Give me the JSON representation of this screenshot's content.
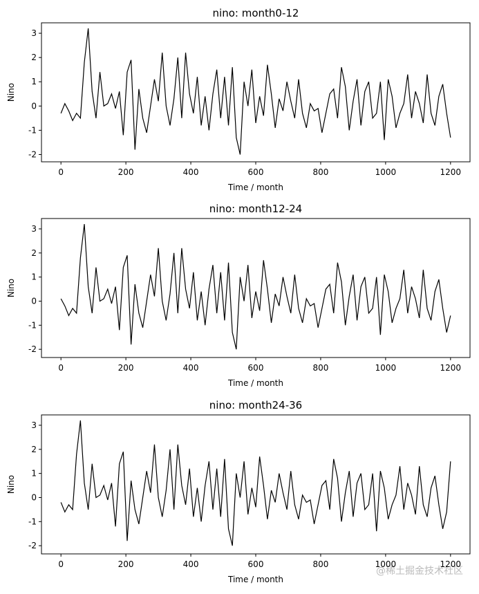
{
  "chart_data": [
    {
      "type": "line",
      "title": "nino: month0-12",
      "xlabel": "Time / month",
      "ylabel": "Nino",
      "xlim": [
        -60,
        1260
      ],
      "ylim": [
        -2.3,
        3.43
      ],
      "xticks": [
        0,
        200,
        400,
        600,
        800,
        1000,
        1200
      ],
      "yticks": [
        -2,
        -1,
        0,
        1,
        2,
        3
      ],
      "x": [
        0,
        12,
        24,
        36,
        48,
        60,
        72,
        84,
        96,
        108,
        120,
        132,
        144,
        156,
        168,
        180,
        192,
        204,
        216,
        228,
        240,
        252,
        264,
        276,
        288,
        300,
        312,
        324,
        336,
        348,
        360,
        372,
        384,
        396,
        408,
        420,
        432,
        444,
        456,
        468,
        480,
        492,
        504,
        516,
        528,
        540,
        552,
        564,
        576,
        588,
        600,
        612,
        624,
        636,
        648,
        660,
        672,
        684,
        696,
        708,
        720,
        732,
        744,
        756,
        768,
        780,
        792,
        804,
        816,
        828,
        840,
        852,
        864,
        876,
        888,
        900,
        912,
        924,
        936,
        948,
        960,
        972,
        984,
        996,
        1008,
        1020,
        1032,
        1044,
        1056,
        1068,
        1080,
        1092,
        1104,
        1116,
        1128,
        1140,
        1152,
        1164,
        1176,
        1188,
        1200
      ],
      "series": [
        {
          "color": "#000000",
          "values": [
            -0.3,
            0.1,
            -0.2,
            -0.6,
            -0.3,
            -0.5,
            1.8,
            3.2,
            0.6,
            -0.5,
            1.4,
            0.0,
            0.1,
            0.5,
            -0.1,
            0.6,
            -1.2,
            1.4,
            1.9,
            -1.8,
            0.7,
            -0.5,
            -1.1,
            0.0,
            1.1,
            0.2,
            2.2,
            0.0,
            -0.8,
            0.3,
            2.0,
            -0.5,
            2.2,
            0.5,
            -0.3,
            1.2,
            -0.8,
            0.4,
            -1.0,
            0.5,
            1.5,
            -0.5,
            1.2,
            -0.8,
            1.6,
            -1.3,
            -2.0,
            1.0,
            0.0,
            1.5,
            -0.7,
            0.4,
            -0.4,
            1.7,
            0.5,
            -0.9,
            0.3,
            -0.2,
            1.0,
            0.2,
            -0.5,
            1.1,
            -0.3,
            -0.9,
            0.1,
            -0.2,
            -0.1,
            -1.1,
            -0.3,
            0.5,
            0.7,
            -0.5,
            1.6,
            0.8,
            -1.0,
            0.2,
            1.1,
            -0.8,
            0.6,
            1.0,
            -0.5,
            -0.3,
            1.0,
            -1.4,
            1.1,
            0.4,
            -0.9,
            -0.3,
            0.1,
            1.3,
            -0.5,
            0.6,
            0.1,
            -0.7,
            1.3,
            -0.3,
            -0.8,
            0.4,
            0.9,
            -0.3,
            -1.3
          ]
        }
      ]
    },
    {
      "type": "line",
      "title": "nino: month12-24",
      "xlabel": "Time / month",
      "ylabel": "Nino",
      "xlim": [
        -60,
        1260
      ],
      "ylim": [
        -2.34,
        3.43
      ],
      "xticks": [
        0,
        200,
        400,
        600,
        800,
        1000,
        1200
      ],
      "yticks": [
        -2,
        -1,
        0,
        1,
        2,
        3
      ],
      "x": [
        0,
        12,
        24,
        36,
        48,
        60,
        72,
        84,
        96,
        108,
        120,
        132,
        144,
        156,
        168,
        180,
        192,
        204,
        216,
        228,
        240,
        252,
        264,
        276,
        288,
        300,
        312,
        324,
        336,
        348,
        360,
        372,
        384,
        396,
        408,
        420,
        432,
        444,
        456,
        468,
        480,
        492,
        504,
        516,
        528,
        540,
        552,
        564,
        576,
        588,
        600,
        612,
        624,
        636,
        648,
        660,
        672,
        684,
        696,
        708,
        720,
        732,
        744,
        756,
        768,
        780,
        792,
        804,
        816,
        828,
        840,
        852,
        864,
        876,
        888,
        900,
        912,
        924,
        936,
        948,
        960,
        972,
        984,
        996,
        1008,
        1020,
        1032,
        1044,
        1056,
        1068,
        1080,
        1092,
        1104,
        1116,
        1128,
        1140,
        1152,
        1164,
        1176,
        1188,
        1200
      ],
      "series": [
        {
          "color": "#000000",
          "values": [
            0.1,
            -0.2,
            -0.6,
            -0.3,
            -0.5,
            1.8,
            3.2,
            0.6,
            -0.5,
            1.4,
            0.0,
            0.1,
            0.5,
            -0.1,
            0.6,
            -1.2,
            1.4,
            1.9,
            -1.8,
            0.7,
            -0.5,
            -1.1,
            0.0,
            1.1,
            0.2,
            2.2,
            0.0,
            -0.8,
            0.3,
            2.0,
            -0.5,
            2.2,
            0.5,
            -0.3,
            1.2,
            -0.8,
            0.4,
            -1.0,
            0.5,
            1.5,
            -0.5,
            1.2,
            -0.8,
            1.6,
            -1.3,
            -2.0,
            1.0,
            0.0,
            1.5,
            -0.7,
            0.4,
            -0.4,
            1.7,
            0.5,
            -0.9,
            0.3,
            -0.2,
            1.0,
            0.2,
            -0.5,
            1.1,
            -0.3,
            -0.9,
            0.1,
            -0.2,
            -0.1,
            -1.1,
            -0.3,
            0.5,
            0.7,
            -0.5,
            1.6,
            0.8,
            -1.0,
            0.2,
            1.1,
            -0.8,
            0.6,
            1.0,
            -0.5,
            -0.3,
            1.0,
            -1.4,
            1.1,
            0.4,
            -0.9,
            -0.3,
            0.1,
            1.3,
            -0.5,
            0.6,
            0.1,
            -0.7,
            1.3,
            -0.3,
            -0.8,
            0.4,
            0.9,
            -0.3,
            -1.3,
            -0.6
          ]
        }
      ]
    },
    {
      "type": "line",
      "title": "nino: month24-36",
      "xlabel": "Time / month",
      "ylabel": "Nino",
      "xlim": [
        -60,
        1260
      ],
      "ylim": [
        -2.34,
        3.43
      ],
      "xticks": [
        0,
        200,
        400,
        600,
        800,
        1000,
        1200
      ],
      "yticks": [
        -2,
        -1,
        0,
        1,
        2,
        3
      ],
      "x": [
        0,
        12,
        24,
        36,
        48,
        60,
        72,
        84,
        96,
        108,
        120,
        132,
        144,
        156,
        168,
        180,
        192,
        204,
        216,
        228,
        240,
        252,
        264,
        276,
        288,
        300,
        312,
        324,
        336,
        348,
        360,
        372,
        384,
        396,
        408,
        420,
        432,
        444,
        456,
        468,
        480,
        492,
        504,
        516,
        528,
        540,
        552,
        564,
        576,
        588,
        600,
        612,
        624,
        636,
        648,
        660,
        672,
        684,
        696,
        708,
        720,
        732,
        744,
        756,
        768,
        780,
        792,
        804,
        816,
        828,
        840,
        852,
        864,
        876,
        888,
        900,
        912,
        924,
        936,
        948,
        960,
        972,
        984,
        996,
        1008,
        1020,
        1032,
        1044,
        1056,
        1068,
        1080,
        1092,
        1104,
        1116,
        1128,
        1140,
        1152,
        1164,
        1176,
        1188,
        1200
      ],
      "series": [
        {
          "color": "#000000",
          "values": [
            -0.2,
            -0.6,
            -0.3,
            -0.5,
            1.8,
            3.2,
            0.6,
            -0.5,
            1.4,
            0.0,
            0.1,
            0.5,
            -0.1,
            0.6,
            -1.2,
            1.4,
            1.9,
            -1.8,
            0.7,
            -0.5,
            -1.1,
            0.0,
            1.1,
            0.2,
            2.2,
            0.0,
            -0.8,
            0.3,
            2.0,
            -0.5,
            2.2,
            0.5,
            -0.3,
            1.2,
            -0.8,
            0.4,
            -1.0,
            0.5,
            1.5,
            -0.5,
            1.2,
            -0.8,
            1.6,
            -1.3,
            -2.0,
            1.0,
            0.0,
            1.5,
            -0.7,
            0.4,
            -0.4,
            1.7,
            0.5,
            -0.9,
            0.3,
            -0.2,
            1.0,
            0.2,
            -0.5,
            1.1,
            -0.3,
            -0.9,
            0.1,
            -0.2,
            -0.1,
            -1.1,
            -0.3,
            0.5,
            0.7,
            -0.5,
            1.6,
            0.8,
            -1.0,
            0.2,
            1.1,
            -0.8,
            0.6,
            1.0,
            -0.5,
            -0.3,
            1.0,
            -1.4,
            1.1,
            0.4,
            -0.9,
            -0.3,
            0.1,
            1.3,
            -0.5,
            0.6,
            0.1,
            -0.7,
            1.3,
            -0.3,
            -0.8,
            0.4,
            0.9,
            -0.3,
            -1.3,
            -0.6,
            1.5
          ]
        }
      ]
    }
  ],
  "watermark": "@稀土掘金技术社区"
}
